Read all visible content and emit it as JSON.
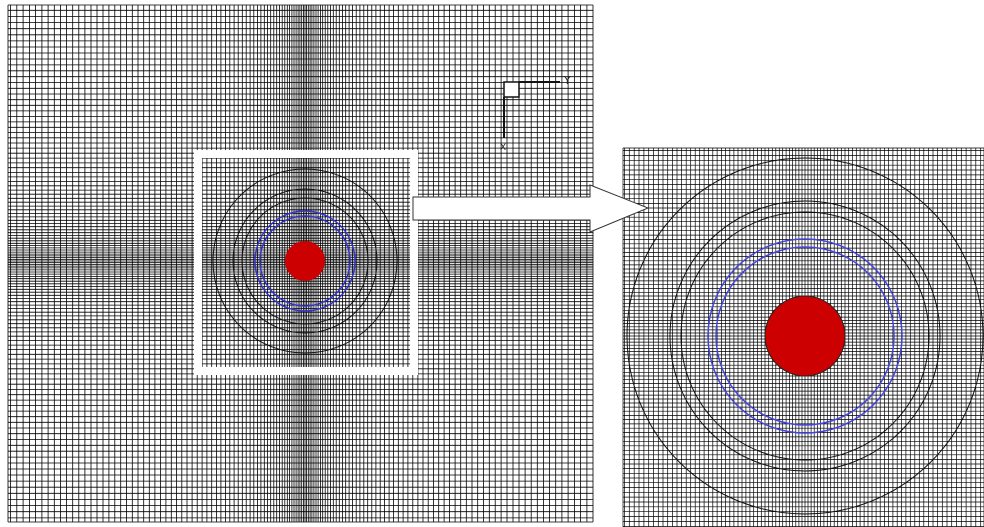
{
  "axis_labels": {
    "y": "Y",
    "x": "X"
  }
}
